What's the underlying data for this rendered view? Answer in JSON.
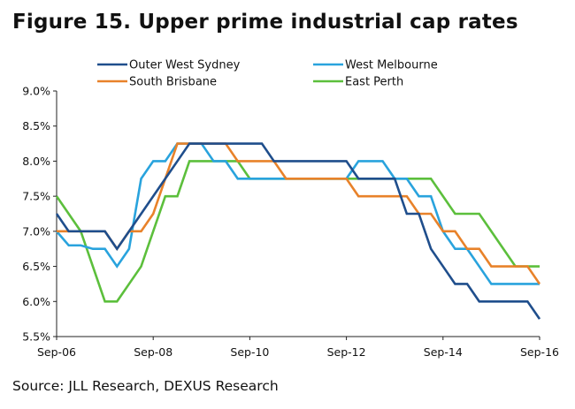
{
  "figure_title": "Figure 15. Upper prime industrial cap rates",
  "source": "Source: JLL Research, DEXUS Research",
  "chart_data": {
    "type": "line",
    "title": "Figure 15. Upper prime industrial cap rates",
    "xlabel": "",
    "ylabel": "",
    "x_ticks": [
      "Sep-06",
      "Sep-08",
      "Sep-10",
      "Sep-12",
      "Sep-14",
      "Sep-16"
    ],
    "y_ticks": [
      "5.5%",
      "6.0%",
      "6.5%",
      "7.0%",
      "7.5%",
      "8.0%",
      "8.5%",
      "9.0%"
    ],
    "ylim": [
      5.5,
      9.0
    ],
    "x_range": [
      "Sep-06",
      "Sep-16"
    ],
    "grid": false,
    "legend_position": "top",
    "series": [
      {
        "name": "Outer West Sydney",
        "color": "#1f4e8c",
        "points": [
          [
            "Sep-06",
            7.25
          ],
          [
            "Dec-06",
            7.0
          ],
          [
            "Mar-07",
            7.0
          ],
          [
            "Jun-07",
            7.0
          ],
          [
            "Sep-07",
            7.0
          ],
          [
            "Dec-07",
            6.75
          ],
          [
            "Mar-08",
            7.0
          ],
          [
            "Jun-08",
            7.25
          ],
          [
            "Sep-08",
            7.5
          ],
          [
            "Dec-08",
            7.75
          ],
          [
            "Mar-09",
            8.0
          ],
          [
            "Jun-09",
            8.25
          ],
          [
            "Sep-09",
            8.25
          ],
          [
            "Dec-09",
            8.25
          ],
          [
            "Mar-10",
            8.25
          ],
          [
            "Jun-10",
            8.25
          ],
          [
            "Sep-10",
            8.25
          ],
          [
            "Dec-10",
            8.25
          ],
          [
            "Mar-11",
            8.0
          ],
          [
            "Jun-11",
            8.0
          ],
          [
            "Sep-11",
            8.0
          ],
          [
            "Dec-11",
            8.0
          ],
          [
            "Mar-12",
            8.0
          ],
          [
            "Jun-12",
            8.0
          ],
          [
            "Sep-12",
            8.0
          ],
          [
            "Dec-12",
            7.75
          ],
          [
            "Mar-13",
            7.75
          ],
          [
            "Jun-13",
            7.75
          ],
          [
            "Sep-13",
            7.75
          ],
          [
            "Dec-13",
            7.25
          ],
          [
            "Mar-14",
            7.25
          ],
          [
            "Jun-14",
            6.75
          ],
          [
            "Sep-14",
            6.5
          ],
          [
            "Dec-14",
            6.25
          ],
          [
            "Mar-15",
            6.25
          ],
          [
            "Jun-15",
            6.0
          ],
          [
            "Sep-15",
            6.0
          ],
          [
            "Dec-15",
            6.0
          ],
          [
            "Mar-16",
            6.0
          ],
          [
            "Jun-16",
            6.0
          ],
          [
            "Sep-16",
            5.75
          ]
        ]
      },
      {
        "name": "South Brisbane",
        "color": "#e8822a",
        "points": [
          [
            "Sep-06",
            7.0
          ],
          [
            "Dec-06",
            7.0
          ],
          [
            "Mar-07",
            7.0
          ],
          [
            "Jun-07",
            7.0
          ],
          [
            "Sep-07",
            7.0
          ],
          [
            "Dec-07",
            6.75
          ],
          [
            "Mar-08",
            7.0
          ],
          [
            "Jun-08",
            7.0
          ],
          [
            "Sep-08",
            7.25
          ],
          [
            "Dec-08",
            7.75
          ],
          [
            "Mar-09",
            8.25
          ],
          [
            "Jun-09",
            8.25
          ],
          [
            "Sep-09",
            8.25
          ],
          [
            "Dec-09",
            8.25
          ],
          [
            "Mar-10",
            8.25
          ],
          [
            "Jun-10",
            8.0
          ],
          [
            "Sep-10",
            8.0
          ],
          [
            "Dec-10",
            8.0
          ],
          [
            "Mar-11",
            8.0
          ],
          [
            "Jun-11",
            7.75
          ],
          [
            "Sep-11",
            7.75
          ],
          [
            "Dec-11",
            7.75
          ],
          [
            "Mar-12",
            7.75
          ],
          [
            "Jun-12",
            7.75
          ],
          [
            "Sep-12",
            7.75
          ],
          [
            "Dec-12",
            7.5
          ],
          [
            "Mar-13",
            7.5
          ],
          [
            "Jun-13",
            7.5
          ],
          [
            "Sep-13",
            7.5
          ],
          [
            "Dec-13",
            7.5
          ],
          [
            "Mar-14",
            7.25
          ],
          [
            "Jun-14",
            7.25
          ],
          [
            "Sep-14",
            7.0
          ],
          [
            "Dec-14",
            7.0
          ],
          [
            "Mar-15",
            6.75
          ],
          [
            "Jun-15",
            6.75
          ],
          [
            "Sep-15",
            6.5
          ],
          [
            "Dec-15",
            6.5
          ],
          [
            "Mar-16",
            6.5
          ],
          [
            "Jun-16",
            6.5
          ],
          [
            "Sep-16",
            6.25
          ]
        ]
      },
      {
        "name": "West Melbourne",
        "color": "#29a3dd",
        "points": [
          [
            "Sep-06",
            7.0
          ],
          [
            "Dec-06",
            6.8
          ],
          [
            "Mar-07",
            6.8
          ],
          [
            "Jun-07",
            6.75
          ],
          [
            "Sep-07",
            6.75
          ],
          [
            "Dec-07",
            6.5
          ],
          [
            "Mar-08",
            6.75
          ],
          [
            "Jun-08",
            7.75
          ],
          [
            "Sep-08",
            8.0
          ],
          [
            "Dec-08",
            8.0
          ],
          [
            "Mar-09",
            8.25
          ],
          [
            "Jun-09",
            8.25
          ],
          [
            "Sep-09",
            8.25
          ],
          [
            "Dec-09",
            8.0
          ],
          [
            "Mar-10",
            8.0
          ],
          [
            "Jun-10",
            7.75
          ],
          [
            "Sep-10",
            7.75
          ],
          [
            "Dec-10",
            7.75
          ],
          [
            "Mar-11",
            7.75
          ],
          [
            "Jun-11",
            7.75
          ],
          [
            "Sep-11",
            7.75
          ],
          [
            "Dec-11",
            7.75
          ],
          [
            "Mar-12",
            7.75
          ],
          [
            "Jun-12",
            7.75
          ],
          [
            "Sep-12",
            7.75
          ],
          [
            "Dec-12",
            8.0
          ],
          [
            "Mar-13",
            8.0
          ],
          [
            "Jun-13",
            8.0
          ],
          [
            "Sep-13",
            7.75
          ],
          [
            "Dec-13",
            7.75
          ],
          [
            "Mar-14",
            7.5
          ],
          [
            "Jun-14",
            7.5
          ],
          [
            "Sep-14",
            7.0
          ],
          [
            "Dec-14",
            6.75
          ],
          [
            "Mar-15",
            6.75
          ],
          [
            "Jun-15",
            6.5
          ],
          [
            "Sep-15",
            6.25
          ],
          [
            "Dec-15",
            6.25
          ],
          [
            "Mar-16",
            6.25
          ],
          [
            "Jun-16",
            6.25
          ],
          [
            "Sep-16",
            6.25
          ]
        ]
      },
      {
        "name": "East Perth",
        "color": "#5cbf3c",
        "points": [
          [
            "Sep-06",
            7.5
          ],
          [
            "Dec-06",
            7.25
          ],
          [
            "Mar-07",
            7.0
          ],
          [
            "Jun-07",
            6.5
          ],
          [
            "Sep-07",
            6.0
          ],
          [
            "Dec-07",
            6.0
          ],
          [
            "Mar-08",
            6.25
          ],
          [
            "Jun-08",
            6.5
          ],
          [
            "Sep-08",
            7.0
          ],
          [
            "Dec-08",
            7.5
          ],
          [
            "Mar-09",
            7.5
          ],
          [
            "Jun-09",
            8.0
          ],
          [
            "Sep-09",
            8.0
          ],
          [
            "Dec-09",
            8.0
          ],
          [
            "Mar-10",
            8.0
          ],
          [
            "Jun-10",
            8.0
          ],
          [
            "Sep-10",
            7.75
          ],
          [
            "Dec-10",
            7.75
          ],
          [
            "Mar-11",
            7.75
          ],
          [
            "Jun-11",
            7.75
          ],
          [
            "Sep-11",
            7.75
          ],
          [
            "Dec-11",
            7.75
          ],
          [
            "Mar-12",
            7.75
          ],
          [
            "Jun-12",
            7.75
          ],
          [
            "Sep-12",
            7.75
          ],
          [
            "Dec-12",
            7.75
          ],
          [
            "Mar-13",
            7.75
          ],
          [
            "Jun-13",
            7.75
          ],
          [
            "Sep-13",
            7.75
          ],
          [
            "Dec-13",
            7.75
          ],
          [
            "Mar-14",
            7.75
          ],
          [
            "Jun-14",
            7.75
          ],
          [
            "Sep-14",
            7.5
          ],
          [
            "Dec-14",
            7.25
          ],
          [
            "Mar-15",
            7.25
          ],
          [
            "Jun-15",
            7.25
          ],
          [
            "Sep-15",
            7.0
          ],
          [
            "Dec-15",
            6.75
          ],
          [
            "Mar-16",
            6.5
          ],
          [
            "Jun-16",
            6.5
          ],
          [
            "Sep-16",
            6.5
          ]
        ]
      }
    ],
    "legend_order": [
      "Outer West Sydney",
      "West Melbourne",
      "South Brisbane",
      "East Perth"
    ]
  }
}
